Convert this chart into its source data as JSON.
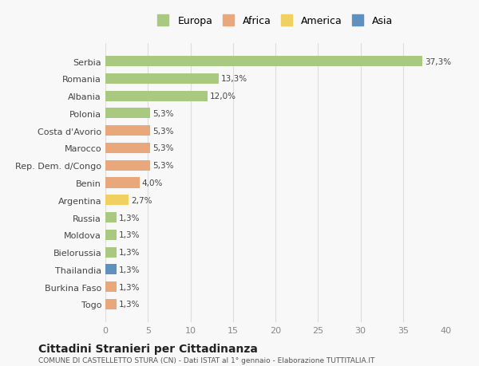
{
  "countries": [
    "Serbia",
    "Romania",
    "Albania",
    "Polonia",
    "Costa d'Avorio",
    "Marocco",
    "Rep. Dem. d/Congo",
    "Benin",
    "Argentina",
    "Russia",
    "Moldova",
    "Bielorussia",
    "Thailandia",
    "Burkina Faso",
    "Togo"
  ],
  "values": [
    37.3,
    13.3,
    12.0,
    5.3,
    5.3,
    5.3,
    5.3,
    4.0,
    2.7,
    1.3,
    1.3,
    1.3,
    1.3,
    1.3,
    1.3
  ],
  "labels": [
    "37,3%",
    "13,3%",
    "12,0%",
    "5,3%",
    "5,3%",
    "5,3%",
    "5,3%",
    "4,0%",
    "2,7%",
    "1,3%",
    "1,3%",
    "1,3%",
    "1,3%",
    "1,3%",
    "1,3%"
  ],
  "continents": [
    "Europa",
    "Europa",
    "Europa",
    "Europa",
    "Africa",
    "Africa",
    "Africa",
    "Africa",
    "America",
    "Europa",
    "Europa",
    "Europa",
    "Asia",
    "Africa",
    "Africa"
  ],
  "colors": {
    "Europa": "#a8c97f",
    "Africa": "#e8a87c",
    "America": "#f0d060",
    "Asia": "#6090c0"
  },
  "legend": [
    "Europa",
    "Africa",
    "America",
    "Asia"
  ],
  "legend_colors": [
    "#a8c97f",
    "#e8a87c",
    "#f0d060",
    "#6090c0"
  ],
  "xlim": [
    0,
    40
  ],
  "xticks": [
    0,
    5,
    10,
    15,
    20,
    25,
    30,
    35,
    40
  ],
  "title": "Cittadini Stranieri per Cittadinanza",
  "subtitle": "COMUNE DI CASTELLETTO STURA (CN) - Dati ISTAT al 1° gennaio - Elaborazione TUTTITALIA.IT",
  "background_color": "#f8f8f8",
  "grid_color": "#dddddd"
}
